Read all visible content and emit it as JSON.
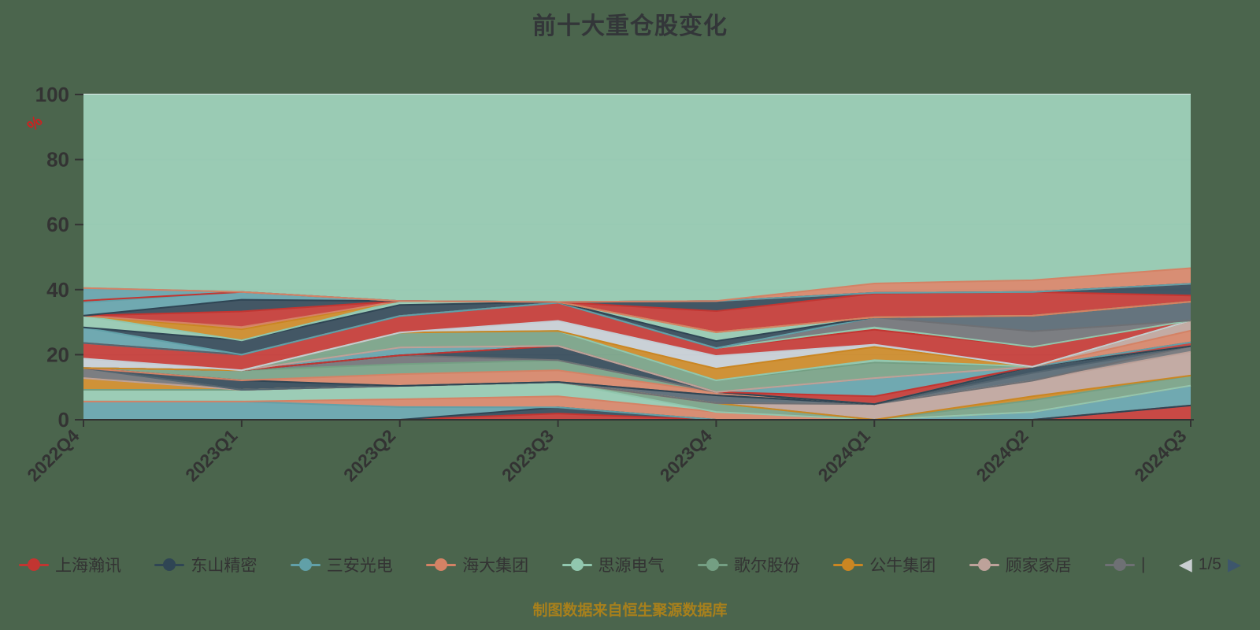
{
  "title": "前十大重仓股变化",
  "caption": "制图数据来自恒生聚源数据库",
  "y_axis": {
    "name": "%",
    "ticks": [
      0,
      20,
      40,
      60,
      80,
      100
    ],
    "min": 0,
    "max": 100
  },
  "x_axis": {
    "categories": [
      "2022Q4",
      "2023Q1",
      "2023Q2",
      "2023Q3",
      "2023Q4",
      "2024Q1",
      "2024Q2",
      "2024Q3"
    ]
  },
  "legend": {
    "items": [
      {
        "label": "上海瀚讯",
        "color": "#c23531",
        "truncated": false
      },
      {
        "label": "东山精密",
        "color": "#2f4554",
        "truncated": false
      },
      {
        "label": "三安光电",
        "color": "#61a0a8",
        "truncated": false
      },
      {
        "label": "海大集团",
        "color": "#d48265",
        "truncated": false
      },
      {
        "label": "思源电气",
        "color": "#91c7ae",
        "truncated": false
      },
      {
        "label": "歌尔股份",
        "color": "#749f83",
        "truncated": false
      },
      {
        "label": "公牛集团",
        "color": "#ca8622",
        "truncated": false
      },
      {
        "label": "顾家家居",
        "color": "#bda29a",
        "truncated": false
      },
      {
        "label": "|",
        "color": "#6e7074",
        "truncated": true
      }
    ],
    "pagination": {
      "prev_icon": "◀",
      "next_icon": "▶",
      "text": "1/5",
      "current": 1,
      "total": 5
    }
  },
  "colors": {
    "background": "#4b654d",
    "plot_background": "#ffffff",
    "gridline": "#e4ebed",
    "axis": "#333333",
    "text": "#333333",
    "axis_name": "#cf2020",
    "caption": "#a8801c",
    "pager_prev": "#c9ced1",
    "pager_next": "#3d566c"
  },
  "chart_data": {
    "type": "area",
    "stacked": true,
    "unit": "%",
    "title": "前十大重仓股变化",
    "x": [
      "2022Q4",
      "2023Q1",
      "2023Q2",
      "2023Q3",
      "2023Q4",
      "2024Q1",
      "2024Q2",
      "2024Q3"
    ],
    "ylim": [
      0,
      100
    ],
    "grid": true,
    "legend_position": "bottom",
    "fill_opacity": 0.9,
    "remainder": {
      "color": "#91c7ae",
      "fill_to": 100
    },
    "series": [
      {
        "name": "上海瀚讯",
        "color": "#c23531",
        "values": [
          0,
          0,
          0,
          1.9,
          0,
          0,
          0,
          4.4
        ]
      },
      {
        "name": "东山精密",
        "color": "#2f4554",
        "values": [
          0,
          0,
          0,
          1.9,
          0,
          0,
          0,
          0
        ]
      },
      {
        "name": "三安光电",
        "color": "#61a0a8",
        "values": [
          5.6,
          5.6,
          3.9,
          0,
          0,
          0,
          2.4,
          6.1
        ]
      },
      {
        "name": "海大集团",
        "color": "#d48265",
        "values": [
          0,
          0,
          2.4,
          3.4,
          2.4,
          0,
          0,
          0
        ]
      },
      {
        "name": "思源电气",
        "color": "#91c7ae",
        "values": [
          3.6,
          3.6,
          4.1,
          4.4,
          0,
          0,
          0,
          0
        ]
      },
      {
        "name": "歌尔股份",
        "color": "#749f83",
        "values": [
          0,
          0,
          0,
          0,
          2.7,
          0,
          3.6,
          3.1
        ]
      },
      {
        "name": "公牛集团",
        "color": "#ca8622",
        "values": [
          3.6,
          0,
          0,
          0,
          0,
          0,
          1.2,
          0
        ]
      },
      {
        "name": "顾家家居",
        "color": "#bda29a",
        "values": [
          0,
          0,
          0,
          0,
          0,
          4.8,
          4.8,
          7.3
        ]
      },
      {
        "name": "|",
        "color": "#6e7074",
        "values": [
          3.1,
          0,
          0,
          0,
          0,
          0,
          0,
          1.7
        ]
      },
      {
        "name": "",
        "color": "#546570",
        "values": [
          0,
          0,
          0,
          0,
          2.4,
          0,
          2.4,
          0
        ]
      },
      {
        "name": "",
        "color": "#2f4554",
        "values": [
          0,
          2.9,
          0,
          0,
          0,
          0,
          1.9,
          0
        ]
      },
      {
        "name": "",
        "color": "#d48265",
        "values": [
          0,
          0,
          3.6,
          3.6,
          1.0,
          0,
          0,
          0
        ]
      },
      {
        "name": "",
        "color": "#749f83",
        "values": [
          0,
          3.1,
          3.1,
          3.1,
          0,
          0,
          0,
          0
        ]
      },
      {
        "name": "",
        "color": "#6e7074",
        "values": [
          0,
          0,
          2.7,
          0,
          0,
          0,
          0,
          0
        ]
      },
      {
        "name": "",
        "color": "#2f4554",
        "values": [
          0,
          0,
          0,
          4.4,
          0,
          0,
          0,
          0
        ]
      },
      {
        "name": "",
        "color": "#c23531",
        "values": [
          0,
          0,
          0,
          0,
          0,
          2.4,
          0,
          1.2
        ]
      },
      {
        "name": "",
        "color": "#61a0a8",
        "values": [
          0,
          0,
          2.4,
          0,
          0,
          5.6,
          0,
          0
        ]
      },
      {
        "name": "",
        "color": "#d48265",
        "values": [
          0,
          0,
          0,
          0,
          0,
          0,
          0,
          3.6
        ]
      },
      {
        "name": "",
        "color": "#bda29a",
        "values": [
          0,
          0,
          0,
          0,
          0,
          0,
          0,
          3.1
        ]
      },
      {
        "name": "",
        "color": "#749f83",
        "values": [
          0,
          0,
          4.6,
          4.6,
          3.6,
          4.8,
          0,
          0
        ]
      },
      {
        "name": "",
        "color": "#91c7ae",
        "values": [
          0,
          0,
          0,
          0,
          0,
          0.7,
          0,
          0
        ]
      },
      {
        "name": "",
        "color": "#ca8622",
        "values": [
          0,
          0,
          0,
          0,
          3.6,
          4.1,
          0,
          0
        ]
      },
      {
        "name": "",
        "color": "#c4ccd3",
        "values": [
          2.9,
          0,
          0,
          3.1,
          3.9,
          0.7,
          0,
          0
        ]
      },
      {
        "name": "",
        "color": "#c23531",
        "values": [
          4.8,
          4.8,
          5.1,
          5.6,
          2.4,
          4.6,
          6.1,
          0
        ]
      },
      {
        "name": "",
        "color": "#91c7ae",
        "values": [
          0,
          0,
          0,
          0,
          0,
          0.7,
          0,
          0
        ]
      },
      {
        "name": "",
        "color": "#6e7074",
        "values": [
          0,
          0,
          0,
          0,
          0,
          3.1,
          4.8,
          0
        ]
      },
      {
        "name": "",
        "color": "#546570",
        "values": [
          0,
          0,
          0,
          0,
          0,
          0,
          4.8,
          5.8
        ]
      },
      {
        "name": "",
        "color": "#61a0a8",
        "values": [
          4.8,
          0,
          0,
          0,
          0,
          0,
          0,
          0
        ]
      },
      {
        "name": "",
        "color": "#2f4554",
        "values": [
          0,
          4.4,
          3.4,
          0.2,
          2.2,
          0,
          0,
          0
        ]
      },
      {
        "name": "",
        "color": "#91c7ae",
        "values": [
          3.6,
          0,
          1.2,
          0,
          2.7,
          0,
          0,
          0
        ]
      },
      {
        "name": "",
        "color": "#ca8622",
        "values": [
          0,
          3.4,
          0,
          0,
          0,
          0,
          0,
          0
        ]
      },
      {
        "name": "",
        "color": "#d48265",
        "values": [
          0,
          0.7,
          0,
          0,
          0,
          0,
          0,
          0
        ]
      },
      {
        "name": "",
        "color": "#c23531",
        "values": [
          0,
          4.8,
          0,
          0,
          6.5,
          7.3,
          7.3,
          1.9
        ]
      },
      {
        "name": "",
        "color": "#2f4554",
        "values": [
          0,
          3.6,
          0,
          0,
          3.1,
          0.2,
          0,
          3.6
        ]
      },
      {
        "name": "",
        "color": "#61a0a8",
        "values": [
          4.1,
          2.4,
          0,
          0,
          0,
          0,
          0,
          0
        ]
      },
      {
        "name": "",
        "color": "#c23531",
        "values": [
          0.5,
          0,
          0,
          0,
          0,
          0,
          0,
          0
        ]
      },
      {
        "name": "",
        "color": "#61a0a8",
        "values": [
          3.9,
          0,
          0,
          0,
          0,
          0,
          0,
          0
        ]
      },
      {
        "name": "",
        "color": "#d48265",
        "values": [
          0,
          0,
          0,
          0,
          0,
          2.9,
          3.6,
          4.8
        ]
      }
    ]
  }
}
